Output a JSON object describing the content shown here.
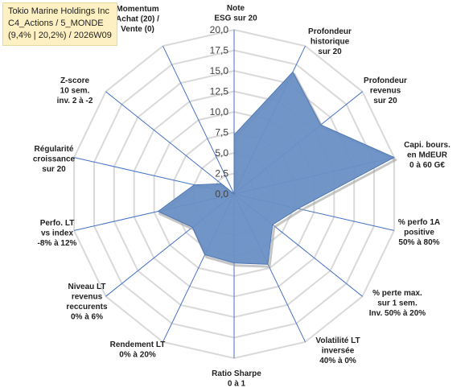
{
  "title": {
    "line1": "Tokio Marine Holdings Inc",
    "line2": "C4_Actions / 5_MONDE",
    "line3": "(9,4% | 20,2%) / 2026W09"
  },
  "colors": {
    "fill": "#6a8fc4",
    "stroke": "#4f78b4",
    "spokes": "#4472c4",
    "grid": "#d9d9d9",
    "shadow": "#a0a0a0"
  },
  "chart_data": {
    "type": "radar",
    "rlim": [
      0,
      20
    ],
    "ticks": [
      "0,0",
      "2,5",
      "5,0",
      "7,5",
      "10,0",
      "12,5",
      "15,0",
      "17,5",
      "20,0"
    ],
    "grid": true,
    "axes": [
      [
        "Note",
        "ESG sur 20"
      ],
      [
        "Profondeur",
        "historique",
        "sur 20"
      ],
      [
        "Profondeur",
        "revenus",
        "sur 20"
      ],
      [
        "Capi. bours.",
        "en MdEUR",
        "0 à 60 G€"
      ],
      [
        "% perfo 1A",
        "positive",
        "50% à 80%"
      ],
      [
        "% perte max.",
        "sur 1 sem.",
        "Inv. 50% à 20%"
      ],
      [
        "Volatilité LT",
        "inversée",
        "40% à 0%"
      ],
      [
        "Ratio Sharpe",
        "0 à 1"
      ],
      [
        "Rendement LT",
        "0% à 20%"
      ],
      [
        "Niveau LT",
        "revenus",
        "reccurents",
        "0% à 6%"
      ],
      [
        "Perfo. LT",
        "vs index",
        "-8% à 12%"
      ],
      [
        "Régularité",
        "croissance",
        "sur 20"
      ],
      [
        "Z-score",
        "10 sem.",
        "inv. 2 à -2"
      ],
      [
        "Momentum",
        "Achat (20) /",
        "Vente (0)"
      ]
    ],
    "values": [
      7.2,
      16.5,
      13.5,
      20.0,
      8.0,
      6.0,
      9.5,
      8.4,
      8.2,
      6.5,
      9.5,
      5.0,
      2.0,
      0.0
    ]
  }
}
